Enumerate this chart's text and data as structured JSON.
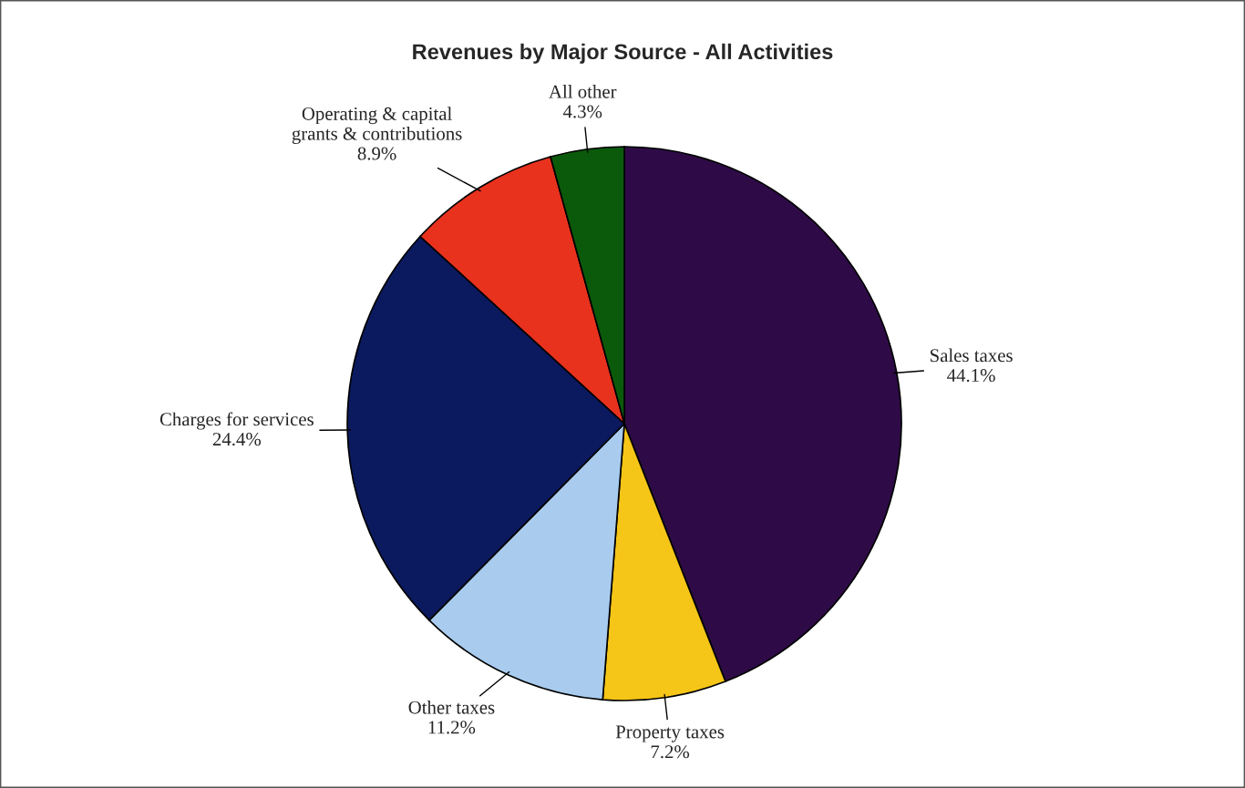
{
  "chart_data": {
    "type": "pie",
    "title": "Revenues by Major Source - All Activities",
    "categories": [
      "Sales taxes",
      "Property taxes",
      "Other taxes",
      "Charges for services",
      "Operating & capital\ngrants & contributions",
      "All other"
    ],
    "values": [
      44.1,
      7.2,
      11.2,
      24.4,
      8.9,
      4.3
    ],
    "value_labels": [
      "44.1%",
      "7.2%",
      "11.2%",
      "24.4%",
      "8.9%",
      "4.3%"
    ],
    "colors": [
      "#2e0b47",
      "#f5c518",
      "#a9cbee",
      "#0b1a5e",
      "#e8321e",
      "#0b5a0b"
    ],
    "legend": false
  }
}
